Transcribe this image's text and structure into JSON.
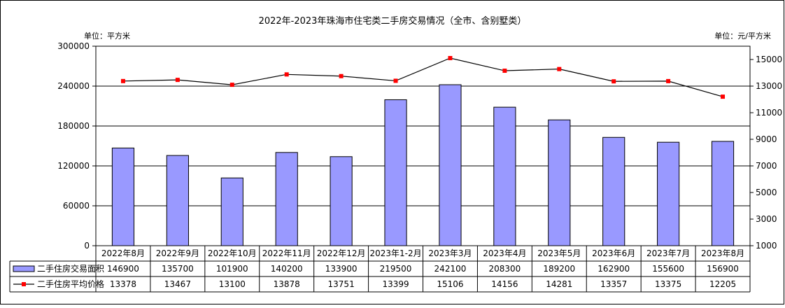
{
  "chart_data": {
    "type": "bar",
    "title": "2022年-2023年珠海市住宅类二手房交易情况（全市、含别墅类）",
    "left_unit": "单位：平方米",
    "right_unit": "单位：元/平方米",
    "categories": [
      "2022年8月",
      "2022年9月",
      "2022年10月",
      "2022年11月",
      "2022年12月",
      "2023年1-2月",
      "2023年3月",
      "2023年4月",
      "2023年5月",
      "2023年6月",
      "2023年7月",
      "2023年8月"
    ],
    "ylim_left": [
      0,
      300000
    ],
    "yticks_left": [
      "0",
      "60000",
      "120000",
      "180000",
      "240000",
      "300000"
    ],
    "ylim_right": [
      1000,
      16000
    ],
    "yticks_right": [
      "1000",
      "3000",
      "5000",
      "7000",
      "9000",
      "11000",
      "13000",
      "15000"
    ],
    "grid": true,
    "series": [
      {
        "name": "二手住房交易面积",
        "type": "bar",
        "axis": "left",
        "color": "#9999ff",
        "values": [
          146900,
          135700,
          101900,
          140200,
          133900,
          219500,
          242100,
          208300,
          189200,
          162900,
          155600,
          156900
        ]
      },
      {
        "name": "二手住房平均价格",
        "type": "line",
        "axis": "right",
        "color": "#ff0000",
        "values": [
          13378,
          13467,
          13100,
          13878,
          13751,
          13399,
          15106,
          14156,
          14281,
          13357,
          13375,
          12205
        ]
      }
    ]
  }
}
